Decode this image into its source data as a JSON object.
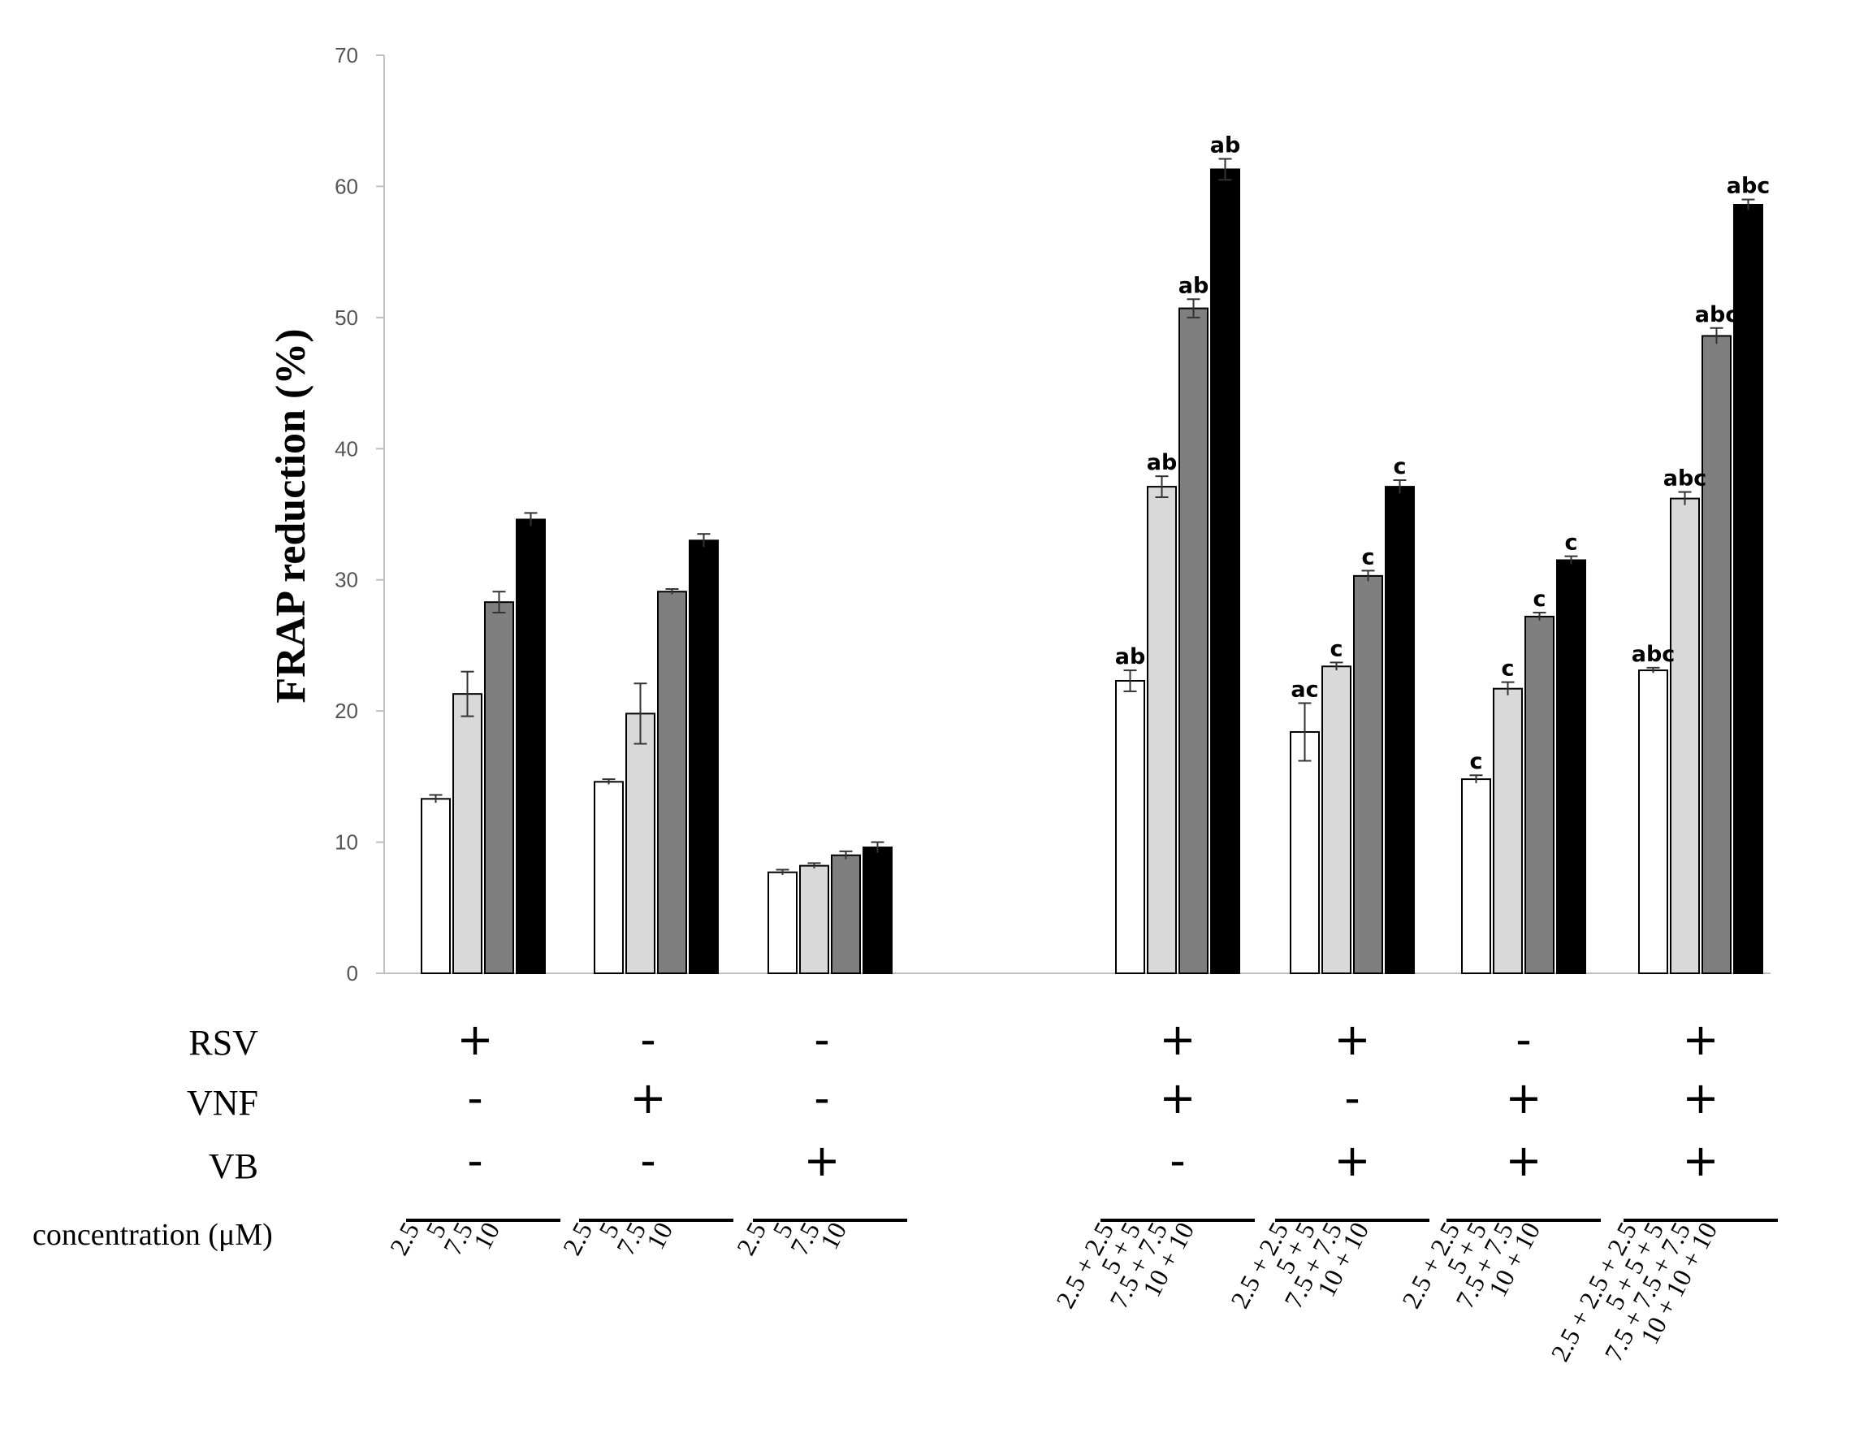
{
  "chart_data": {
    "type": "bar",
    "ylabel": "FRAP reduction (%)",
    "ylim": [
      0,
      70
    ],
    "yticks": [
      "0",
      "10",
      "20",
      "30",
      "40",
      "50",
      "60",
      "70"
    ],
    "concentration_label": "concentration (μM)",
    "row_labels": [
      "RSV",
      "VNF",
      "VB"
    ],
    "colors": [
      "#ffffff",
      "#d9d9d9",
      "#7f7f7f",
      "#000000"
    ],
    "groups": [
      {
        "signs": [
          "+",
          "-",
          "-"
        ],
        "values": [
          13.3,
          21.3,
          28.3,
          34.6
        ],
        "errors": [
          0.3,
          1.7,
          0.8,
          0.5
        ],
        "sig": [
          "",
          "",
          "",
          ""
        ],
        "concentrations": [
          "2.5",
          "5",
          "7.5",
          "10"
        ]
      },
      {
        "signs": [
          "-",
          "+",
          "-"
        ],
        "values": [
          14.6,
          19.8,
          29.1,
          33.0
        ],
        "errors": [
          0.2,
          2.3,
          0.2,
          0.5
        ],
        "sig": [
          "",
          "",
          "",
          ""
        ],
        "concentrations": [
          "2.5",
          "5",
          "7.5",
          "10"
        ]
      },
      {
        "signs": [
          "-",
          "-",
          "+"
        ],
        "values": [
          7.7,
          8.2,
          9.0,
          9.6
        ],
        "errors": [
          0.2,
          0.2,
          0.3,
          0.4
        ],
        "sig": [
          "",
          "",
          "",
          ""
        ],
        "concentrations": [
          "2.5",
          "5",
          "7.5",
          "10"
        ]
      },
      {
        "signs": [
          "+",
          "+",
          "-"
        ],
        "values": [
          22.3,
          37.1,
          50.7,
          61.3
        ],
        "errors": [
          0.8,
          0.8,
          0.7,
          0.8
        ],
        "sig": [
          "ab",
          "ab",
          "ab",
          "ab"
        ],
        "concentrations": [
          "2.5 + 2.5",
          "5 + 5",
          "7.5 + 7.5",
          "10 + 10"
        ]
      },
      {
        "signs": [
          "+",
          "-",
          "+"
        ],
        "values": [
          18.4,
          23.4,
          30.3,
          37.1
        ],
        "errors": [
          2.2,
          0.3,
          0.4,
          0.5
        ],
        "sig": [
          "ac",
          "c",
          "c",
          "c"
        ],
        "concentrations": [
          "2.5 + 2.5",
          "5 + 5",
          "7.5 + 7.5",
          "10 + 10"
        ]
      },
      {
        "signs": [
          "-",
          "+",
          "+"
        ],
        "values": [
          14.8,
          21.7,
          27.2,
          31.5
        ],
        "errors": [
          0.3,
          0.5,
          0.3,
          0.3
        ],
        "sig": [
          "c",
          "c",
          "c",
          "c"
        ],
        "concentrations": [
          "2.5 + 2.5",
          "5 + 5",
          "7.5 + 7.5",
          "10 + 10"
        ]
      },
      {
        "signs": [
          "+",
          "+",
          "+"
        ],
        "values": [
          23.1,
          36.2,
          48.6,
          58.6
        ],
        "errors": [
          0.2,
          0.5,
          0.6,
          0.4
        ],
        "sig": [
          "abc",
          "abc",
          "abc",
          "abc"
        ],
        "concentrations": [
          "2.5 + 2.5 + 2.5",
          "5 + 5 + 5",
          "7.5 + 7.5 + 7.5",
          "10 + 10 + 10"
        ]
      }
    ]
  }
}
